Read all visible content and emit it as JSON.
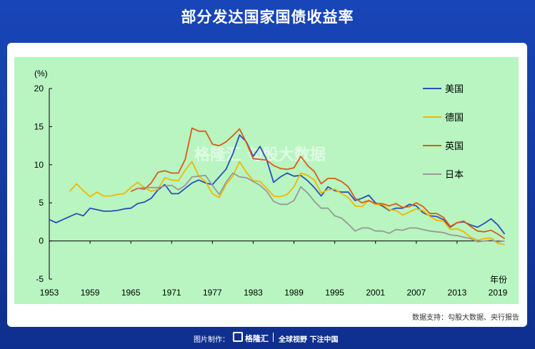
{
  "header": {
    "title": "部分发达国家国债收益率"
  },
  "source_text": "数据支持：勾股大数据、央行报告",
  "watermark": "格隆汇 勾股大数据",
  "footer": {
    "made_by": "图片制作：",
    "brand": "格隆汇",
    "slogan": "全球视野 下注中国"
  },
  "colors": {
    "usa": "#2a4fb8",
    "germany": "#f0b800",
    "uk": "#dc5a1a",
    "japan": "#999999",
    "plot_bg": "#b8f5c0"
  },
  "chart_data": {
    "type": "line",
    "title": "部分发达国家国债收益率",
    "ylabel": "(%)",
    "xlabel": "年份",
    "ylim": [
      -5,
      20
    ],
    "xlim": [
      1953,
      2020
    ],
    "yticks": [
      -5,
      0,
      5,
      10,
      15,
      20
    ],
    "xticks": [
      1953,
      1959,
      1965,
      1971,
      1977,
      1983,
      1989,
      1995,
      2001,
      2007,
      2013,
      2019
    ],
    "legend_position": "top-right",
    "series": [
      {
        "name": "美国",
        "color": "#2a4fb8",
        "x": [
          1953,
          1954,
          1955,
          1956,
          1957,
          1958,
          1959,
          1960,
          1961,
          1962,
          1963,
          1964,
          1965,
          1966,
          1967,
          1968,
          1969,
          1970,
          1971,
          1972,
          1973,
          1974,
          1975,
          1976,
          1977,
          1978,
          1979,
          1980,
          1981,
          1982,
          1983,
          1984,
          1985,
          1986,
          1987,
          1988,
          1989,
          1990,
          1991,
          1992,
          1993,
          1994,
          1995,
          1996,
          1997,
          1998,
          1999,
          2000,
          2001,
          2002,
          2003,
          2004,
          2005,
          2006,
          2007,
          2008,
          2009,
          2010,
          2011,
          2012,
          2013,
          2014,
          2015,
          2016,
          2017,
          2018,
          2019,
          2020
        ],
        "y": [
          2.8,
          2.4,
          2.8,
          3.2,
          3.6,
          3.3,
          4.3,
          4.1,
          3.9,
          3.9,
          4.0,
          4.2,
          4.3,
          4.9,
          5.1,
          5.6,
          6.7,
          7.4,
          6.2,
          6.2,
          6.9,
          7.6,
          8.0,
          7.6,
          7.4,
          8.4,
          9.4,
          11.4,
          13.9,
          13.0,
          11.1,
          12.4,
          10.6,
          7.7,
          8.4,
          8.9,
          8.5,
          8.6,
          7.9,
          7.0,
          5.9,
          7.1,
          6.6,
          6.4,
          6.4,
          5.3,
          5.6,
          6.0,
          5.0,
          4.6,
          4.0,
          4.3,
          4.3,
          4.8,
          4.6,
          3.7,
          3.3,
          3.2,
          2.8,
          1.8,
          2.4,
          2.5,
          2.1,
          1.8,
          2.3,
          2.9,
          2.1,
          0.9
        ]
      },
      {
        "name": "德国",
        "color": "#f0b800",
        "x": [
          1956,
          1957,
          1958,
          1959,
          1960,
          1961,
          1962,
          1963,
          1964,
          1965,
          1966,
          1967,
          1968,
          1969,
          1970,
          1971,
          1972,
          1973,
          1974,
          1975,
          1976,
          1977,
          1978,
          1979,
          1980,
          1981,
          1982,
          1983,
          1984,
          1985,
          1986,
          1987,
          1988,
          1989,
          1990,
          1991,
          1992,
          1993,
          1994,
          1995,
          1996,
          1997,
          1998,
          1999,
          2000,
          2001,
          2002,
          2003,
          2004,
          2005,
          2006,
          2007,
          2008,
          2009,
          2010,
          2011,
          2012,
          2013,
          2014,
          2015,
          2016,
          2017,
          2018,
          2019,
          2020
        ],
        "y": [
          6.5,
          7.5,
          6.6,
          5.8,
          6.4,
          5.9,
          5.9,
          6.1,
          6.2,
          7.0,
          7.7,
          7.0,
          6.5,
          6.8,
          8.3,
          8.0,
          7.9,
          9.3,
          10.4,
          8.5,
          7.8,
          6.2,
          5.7,
          7.4,
          8.5,
          10.4,
          9.0,
          7.9,
          7.8,
          6.9,
          5.9,
          5.8,
          6.1,
          7.1,
          8.9,
          8.6,
          8.0,
          6.3,
          6.7,
          6.8,
          6.2,
          5.7,
          4.6,
          4.5,
          5.3,
          4.8,
          4.8,
          4.1,
          4.0,
          3.4,
          3.8,
          4.2,
          4.0,
          3.2,
          2.7,
          2.6,
          1.5,
          1.6,
          1.2,
          0.5,
          0.1,
          0.3,
          0.4,
          -0.3,
          -0.5
        ]
      },
      {
        "name": "英国",
        "color": "#dc5a1a",
        "x": [
          1965,
          1966,
          1967,
          1968,
          1969,
          1970,
          1971,
          1972,
          1973,
          1974,
          1975,
          1976,
          1977,
          1978,
          1979,
          1980,
          1981,
          1982,
          1983,
          1984,
          1985,
          1986,
          1987,
          1988,
          1989,
          1990,
          1991,
          1992,
          1993,
          1994,
          1995,
          1996,
          1997,
          1998,
          1999,
          2000,
          2001,
          2002,
          2003,
          2004,
          2005,
          2006,
          2007,
          2008,
          2009,
          2010,
          2011,
          2012,
          2013,
          2014,
          2015,
          2016,
          2017,
          2018,
          2019,
          2020
        ],
        "y": [
          6.5,
          6.9,
          6.8,
          7.6,
          9.0,
          9.2,
          8.9,
          8.9,
          10.7,
          14.8,
          14.4,
          14.4,
          12.7,
          12.5,
          13.0,
          13.8,
          14.7,
          12.9,
          10.8,
          10.7,
          10.6,
          9.9,
          9.5,
          9.4,
          9.6,
          11.1,
          9.9,
          9.1,
          7.5,
          8.2,
          8.2,
          7.8,
          7.1,
          5.6,
          5.0,
          5.3,
          4.9,
          4.9,
          4.6,
          4.9,
          4.4,
          4.5,
          5.0,
          4.5,
          3.6,
          3.6,
          3.1,
          1.9,
          2.4,
          2.6,
          1.9,
          1.3,
          1.2,
          1.4,
          0.9,
          0.3
        ]
      },
      {
        "name": "日本",
        "color": "#999999",
        "x": [
          1966,
          1967,
          1968,
          1969,
          1970,
          1971,
          1972,
          1973,
          1974,
          1975,
          1976,
          1977,
          1978,
          1979,
          1980,
          1981,
          1982,
          1983,
          1984,
          1985,
          1986,
          1987,
          1988,
          1989,
          1990,
          1991,
          1992,
          1993,
          1994,
          1995,
          1996,
          1997,
          1998,
          1999,
          2000,
          2001,
          2002,
          2003,
          2004,
          2005,
          2006,
          2007,
          2008,
          2009,
          2010,
          2011,
          2012,
          2013,
          2014,
          2015,
          2016,
          2017,
          2018,
          2019,
          2020
        ],
        "y": [
          6.9,
          7.0,
          7.0,
          7.0,
          7.2,
          7.3,
          6.7,
          7.3,
          8.4,
          8.5,
          8.6,
          7.3,
          6.1,
          7.7,
          8.9,
          8.4,
          8.3,
          7.8,
          7.3,
          6.5,
          5.2,
          4.8,
          4.8,
          5.3,
          7.1,
          6.3,
          5.2,
          4.3,
          4.3,
          3.3,
          3.0,
          2.2,
          1.3,
          1.7,
          1.7,
          1.3,
          1.3,
          1.0,
          1.5,
          1.4,
          1.7,
          1.7,
          1.5,
          1.3,
          1.2,
          1.1,
          0.8,
          0.7,
          0.5,
          0.3,
          -0.1,
          0.0,
          0.1,
          -0.1,
          0.0
        ]
      }
    ]
  }
}
